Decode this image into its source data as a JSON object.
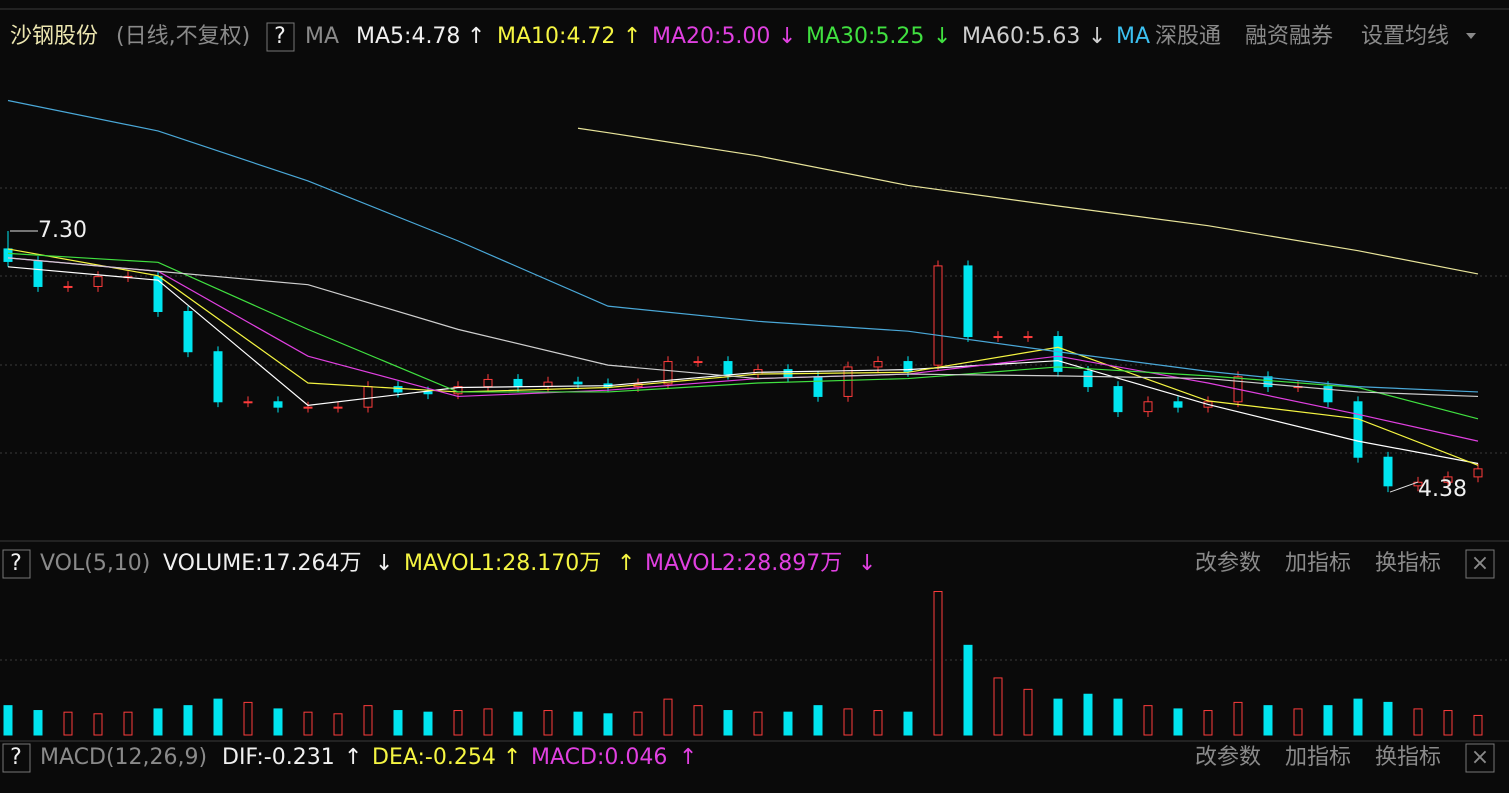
{
  "header": {
    "stock": "沙钢股份",
    "period": "(日线,不复权)",
    "help": "?",
    "ma_label": "MA",
    "ma_items": [
      {
        "label": "MA5:4.78",
        "arrow": "↑"
      },
      {
        "label": "MA10:4.72",
        "arrow": "↑"
      },
      {
        "label": "MA20:5.00",
        "arrow": "↓"
      },
      {
        "label": "MA30:5.25",
        "arrow": "↓"
      },
      {
        "label": "MA60:5.63",
        "arrow": "↓"
      }
    ],
    "north_ma": "MA",
    "north": "深股通",
    "margin": "融资融券",
    "settings": "设置均线"
  },
  "volume_panel": {
    "help": "?",
    "title": "VOL(5,10)",
    "items": [
      {
        "label": "VOLUME:17.264万",
        "arrow": "↓"
      },
      {
        "label": "MAVOL1:28.170万",
        "arrow": "↑"
      },
      {
        "label": "MAVOL2:28.897万",
        "arrow": "↓"
      }
    ],
    "buttons": [
      "改参数",
      "加指标",
      "换指标"
    ],
    "close": "×"
  },
  "macd_panel": {
    "help": "?",
    "title": "MACD(12,26,9)",
    "items": [
      {
        "label": "DIF:-0.231",
        "arrow": "↑"
      },
      {
        "label": "DEA:-0.254",
        "arrow": "↑"
      },
      {
        "label": "MACD:0.046",
        "arrow": "↑"
      }
    ],
    "buttons": [
      "改参数",
      "加指标",
      "换指标"
    ],
    "close": "×"
  },
  "chart_data": {
    "type": "candlestick",
    "ylim": [
      3.9,
      8.9
    ],
    "open": [
      7.1,
      6.96,
      6.68,
      6.68,
      6.79,
      6.79,
      6.4,
      5.95,
      5.39,
      5.39,
      5.33,
      5.33,
      5.33,
      5.56,
      5.5,
      5.48,
      5.56,
      5.64,
      5.56,
      5.61,
      5.59,
      5.56,
      5.59,
      5.84,
      5.84,
      5.7,
      5.75,
      5.67,
      5.45,
      5.78,
      5.84,
      5.8,
      6.91,
      6.12,
      6.12,
      6.12,
      5.73,
      5.56,
      5.28,
      5.39,
      5.33,
      5.39,
      5.67,
      5.56,
      5.56,
      5.39,
      4.77,
      4.45,
      4.49,
      4.55
    ],
    "close": [
      6.96,
      6.68,
      6.68,
      6.79,
      6.79,
      6.4,
      5.95,
      5.39,
      5.39,
      5.33,
      5.33,
      5.33,
      5.56,
      5.5,
      5.48,
      5.56,
      5.64,
      5.56,
      5.61,
      5.59,
      5.56,
      5.59,
      5.84,
      5.84,
      5.7,
      5.75,
      5.67,
      5.45,
      5.78,
      5.84,
      5.73,
      6.91,
      6.12,
      6.12,
      6.12,
      5.73,
      5.56,
      5.28,
      5.39,
      5.33,
      5.39,
      5.67,
      5.56,
      5.56,
      5.39,
      4.77,
      4.45,
      4.49,
      4.55,
      4.64
    ],
    "high": [
      7.3,
      7.02,
      6.74,
      6.85,
      6.85,
      6.85,
      6.46,
      6.01,
      5.45,
      5.45,
      5.39,
      5.39,
      5.62,
      5.62,
      5.56,
      5.62,
      5.7,
      5.7,
      5.67,
      5.67,
      5.65,
      5.65,
      5.9,
      5.9,
      5.9,
      5.81,
      5.81,
      5.73,
      5.84,
      5.9,
      5.9,
      6.97,
      6.97,
      6.18,
      6.18,
      6.18,
      5.79,
      5.62,
      5.45,
      5.45,
      5.45,
      5.73,
      5.73,
      5.62,
      5.62,
      5.45,
      4.83,
      4.55,
      4.61,
      4.7
    ],
    "low": [
      6.9,
      6.62,
      6.62,
      6.62,
      6.73,
      6.34,
      5.89,
      5.33,
      5.33,
      5.27,
      5.27,
      5.27,
      5.27,
      5.44,
      5.42,
      5.42,
      5.5,
      5.5,
      5.5,
      5.53,
      5.5,
      5.5,
      5.53,
      5.78,
      5.64,
      5.64,
      5.61,
      5.39,
      5.39,
      5.72,
      5.67,
      5.74,
      6.06,
      6.06,
      6.06,
      5.67,
      5.5,
      5.22,
      5.22,
      5.27,
      5.27,
      5.33,
      5.5,
      5.5,
      5.33,
      4.71,
      4.38,
      4.39,
      4.43,
      4.49
    ],
    "annotations": [
      {
        "text": "7.30",
        "index": 0,
        "at": "high"
      },
      {
        "text": "4.38",
        "index": 46,
        "at": "low"
      }
    ],
    "lines": [
      {
        "color": "#ffffff",
        "x": [
          0,
          5,
          10,
          15,
          20,
          25,
          30,
          35,
          40,
          45,
          49
        ],
        "values": [
          6.9,
          6.75,
          5.35,
          5.55,
          5.57,
          5.72,
          5.75,
          5.85,
          5.36,
          4.95,
          4.7
        ]
      },
      {
        "color": "#f5f542",
        "x": [
          0,
          5,
          10,
          15,
          20,
          25,
          30,
          35,
          40,
          45,
          49
        ],
        "values": [
          7.1,
          6.8,
          5.6,
          5.5,
          5.55,
          5.7,
          5.72,
          6.0,
          5.4,
          5.2,
          4.68
        ]
      },
      {
        "color": "#e040e0",
        "x": [
          0,
          5,
          10,
          15,
          20,
          25,
          30,
          35,
          40,
          45,
          49
        ],
        "values": [
          7.0,
          6.85,
          5.9,
          5.45,
          5.52,
          5.65,
          5.7,
          5.9,
          5.6,
          5.25,
          4.95
        ]
      },
      {
        "color": "#40e040",
        "x": [
          0,
          5,
          10,
          15,
          20,
          25,
          30,
          35,
          40,
          45,
          49
        ],
        "values": [
          7.05,
          6.95,
          6.2,
          5.5,
          5.5,
          5.6,
          5.65,
          5.78,
          5.68,
          5.55,
          5.2
        ]
      },
      {
        "color": "#cfcfcf",
        "x": [
          0,
          5,
          10,
          15,
          20,
          25,
          30,
          35,
          40,
          45,
          49
        ],
        "values": [
          7.0,
          6.85,
          6.7,
          6.2,
          5.8,
          5.65,
          5.7,
          5.68,
          5.65,
          5.5,
          5.45
        ]
      },
      {
        "color": "#4aa8d8",
        "x": [
          0,
          5,
          10,
          15,
          20,
          25,
          30,
          35,
          40,
          45,
          49
        ],
        "values": [
          8.76,
          8.42,
          7.86,
          7.19,
          6.46,
          6.29,
          6.18,
          5.95,
          5.73,
          5.56,
          5.5
        ]
      },
      {
        "color": "#e8e49a",
        "x": [
          0,
          5,
          10,
          15,
          19,
          20,
          25,
          30,
          35,
          40,
          45,
          49
        ],
        "values": [
          null,
          null,
          null,
          null,
          8.45,
          8.4,
          8.14,
          7.81,
          7.58,
          7.36,
          7.08,
          6.82
        ]
      }
    ],
    "volume": {
      "ylim": [
        0,
        92
      ],
      "values": [
        18,
        15,
        14,
        13,
        14,
        16,
        18,
        22,
        20,
        16,
        14,
        13,
        18,
        15,
        14,
        15,
        16,
        14,
        15,
        14,
        13,
        14,
        22,
        18,
        15,
        14,
        14,
        18,
        16,
        15,
        14,
        88,
        55,
        35,
        28,
        22,
        25,
        22,
        18,
        16,
        15,
        20,
        18,
        16,
        18,
        22,
        20,
        16,
        15,
        12
      ]
    }
  }
}
